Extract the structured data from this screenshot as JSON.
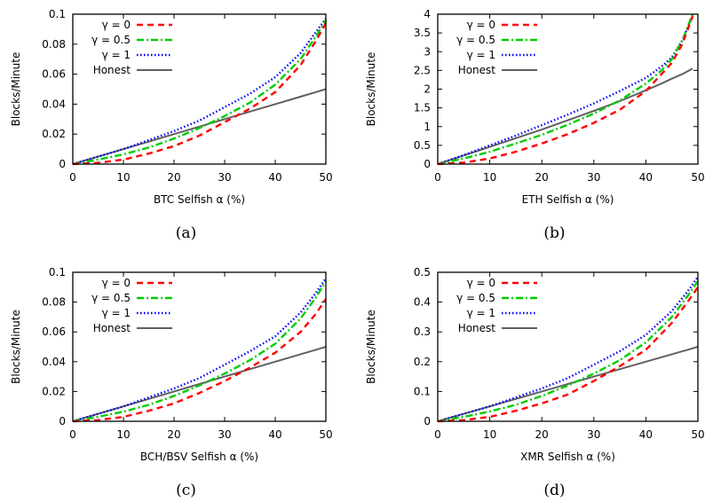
{
  "chart_data": [
    {
      "type": "line",
      "caption": "(a)",
      "title": "",
      "xlabel": "BTC Selfish α (%)",
      "ylabel": "Blocks/Minute",
      "xlim": [
        0,
        50
      ],
      "ylim": [
        0,
        0.1
      ],
      "xticks": [
        "0",
        "10",
        "20",
        "30",
        "40",
        "50"
      ],
      "yticks": [
        "0",
        "0.02",
        "0.04",
        "0.06",
        "0.08",
        "0.1"
      ],
      "legend_position": "top-left",
      "x": [
        0,
        5,
        10,
        15,
        20,
        25,
        30,
        35,
        40,
        45,
        48,
        50
      ],
      "series": [
        {
          "name": "γ = 0",
          "color": "#ff0000",
          "style": "dashed",
          "values": [
            0,
            0.0008,
            0.003,
            0.007,
            0.012,
            0.019,
            0.028,
            0.037,
            0.048,
            0.066,
            0.082,
            0.094
          ]
        },
        {
          "name": "γ = 0.5",
          "color": "#00cc00",
          "style": "dash-dot",
          "values": [
            0,
            0.003,
            0.0065,
            0.011,
            0.017,
            0.024,
            0.032,
            0.041,
            0.053,
            0.07,
            0.085,
            0.096
          ]
        },
        {
          "name": "γ = 1",
          "color": "#0000ff",
          "style": "dotted",
          "values": [
            0,
            0.005,
            0.01,
            0.016,
            0.022,
            0.029,
            0.038,
            0.047,
            0.058,
            0.074,
            0.088,
            0.097
          ]
        },
        {
          "name": "Honest",
          "color": "#606060",
          "style": "solid",
          "values": [
            0,
            0.005,
            0.01,
            0.015,
            0.02,
            0.025,
            0.03,
            0.035,
            0.04,
            0.045,
            0.048,
            0.05
          ]
        }
      ]
    },
    {
      "type": "line",
      "caption": "(b)",
      "title": "",
      "xlabel": "ETH Selfish α (%)",
      "ylabel": "Blocks/Minute",
      "xlim": [
        0,
        50
      ],
      "ylim": [
        0,
        4
      ],
      "xticks": [
        "0",
        "10",
        "20",
        "30",
        "40",
        "50"
      ],
      "yticks": [
        "0",
        "0.5",
        "1",
        "1.5",
        "2",
        "2.5",
        "3",
        "3.5",
        "4"
      ],
      "legend_position": "top-left",
      "x": [
        0,
        5,
        10,
        15,
        20,
        25,
        30,
        35,
        40,
        43,
        45,
        47,
        49
      ],
      "series": [
        {
          "name": "γ = 0",
          "color": "#ff0000",
          "style": "dashed",
          "values": [
            0,
            0.04,
            0.15,
            0.33,
            0.55,
            0.8,
            1.1,
            1.45,
            1.95,
            2.4,
            2.7,
            3.2,
            3.95
          ]
        },
        {
          "name": "γ = 0.5",
          "color": "#00cc00",
          "style": "dash-dot",
          "values": [
            0,
            0.15,
            0.33,
            0.55,
            0.78,
            1.05,
            1.35,
            1.7,
            2.15,
            2.5,
            2.8,
            3.3,
            4.0
          ]
        },
        {
          "name": "γ = 1",
          "color": "#0000ff",
          "style": "dotted",
          "values": [
            0,
            0.24,
            0.5,
            0.76,
            1.04,
            1.32,
            1.62,
            1.95,
            2.3,
            2.6,
            2.85,
            3.3,
            3.95
          ]
        },
        {
          "name": "Honest",
          "color": "#606060",
          "style": "solid",
          "values": [
            0,
            0.23,
            0.46,
            0.69,
            0.92,
            1.17,
            1.42,
            1.68,
            1.97,
            2.15,
            2.28,
            2.4,
            2.55
          ]
        }
      ]
    },
    {
      "type": "line",
      "caption": "(c)",
      "title": "",
      "xlabel": "BCH/BSV Selfish α (%)",
      "ylabel": "Blocks/Minute",
      "xlim": [
        0,
        50
      ],
      "ylim": [
        0,
        0.1
      ],
      "xticks": [
        "0",
        "10",
        "20",
        "30",
        "40",
        "50"
      ],
      "yticks": [
        "0",
        "0.02",
        "0.04",
        "0.06",
        "0.08",
        "0.1"
      ],
      "legend_position": "top-left",
      "x": [
        0,
        5,
        10,
        15,
        20,
        25,
        30,
        35,
        40,
        45,
        48,
        50
      ],
      "series": [
        {
          "name": "γ = 0",
          "color": "#ff0000",
          "style": "dashed",
          "values": [
            0,
            0.0008,
            0.003,
            0.007,
            0.012,
            0.019,
            0.027,
            0.036,
            0.046,
            0.06,
            0.072,
            0.082
          ]
        },
        {
          "name": "γ = 0.5",
          "color": "#00cc00",
          "style": "dash-dot",
          "values": [
            0,
            0.003,
            0.0065,
            0.011,
            0.017,
            0.024,
            0.032,
            0.041,
            0.052,
            0.069,
            0.083,
            0.094
          ]
        },
        {
          "name": "γ = 1",
          "color": "#0000ff",
          "style": "dotted",
          "values": [
            0,
            0.005,
            0.01,
            0.016,
            0.022,
            0.029,
            0.038,
            0.047,
            0.057,
            0.073,
            0.086,
            0.096
          ]
        },
        {
          "name": "Honest",
          "color": "#606060",
          "style": "solid",
          "values": [
            0,
            0.005,
            0.01,
            0.015,
            0.02,
            0.025,
            0.03,
            0.035,
            0.04,
            0.045,
            0.048,
            0.05
          ]
        }
      ]
    },
    {
      "type": "line",
      "caption": "(d)",
      "title": "",
      "xlabel": "XMR Selfish α (%)",
      "ylabel": "Blocks/Minute",
      "xlim": [
        0,
        50
      ],
      "ylim": [
        0,
        0.5
      ],
      "xticks": [
        "0",
        "10",
        "20",
        "30",
        "40",
        "50"
      ],
      "yticks": [
        "0",
        "0.1",
        "0.2",
        "0.3",
        "0.4",
        "0.5"
      ],
      "legend_position": "top-left",
      "x": [
        0,
        5,
        10,
        15,
        20,
        25,
        30,
        35,
        40,
        45,
        48,
        50
      ],
      "series": [
        {
          "name": "γ = 0",
          "color": "#ff0000",
          "style": "dashed",
          "values": [
            0,
            0.004,
            0.015,
            0.035,
            0.06,
            0.09,
            0.135,
            0.185,
            0.24,
            0.33,
            0.4,
            0.45
          ]
        },
        {
          "name": "γ = 0.5",
          "color": "#00cc00",
          "style": "dash-dot",
          "values": [
            0,
            0.015,
            0.033,
            0.055,
            0.085,
            0.12,
            0.16,
            0.205,
            0.265,
            0.35,
            0.42,
            0.47
          ]
        },
        {
          "name": "γ = 1",
          "color": "#0000ff",
          "style": "dotted",
          "values": [
            0,
            0.025,
            0.05,
            0.08,
            0.11,
            0.145,
            0.19,
            0.235,
            0.29,
            0.37,
            0.435,
            0.485
          ]
        },
        {
          "name": "Honest",
          "color": "#606060",
          "style": "solid",
          "values": [
            0,
            0.025,
            0.05,
            0.075,
            0.1,
            0.125,
            0.15,
            0.175,
            0.2,
            0.225,
            0.24,
            0.25
          ]
        }
      ]
    }
  ]
}
